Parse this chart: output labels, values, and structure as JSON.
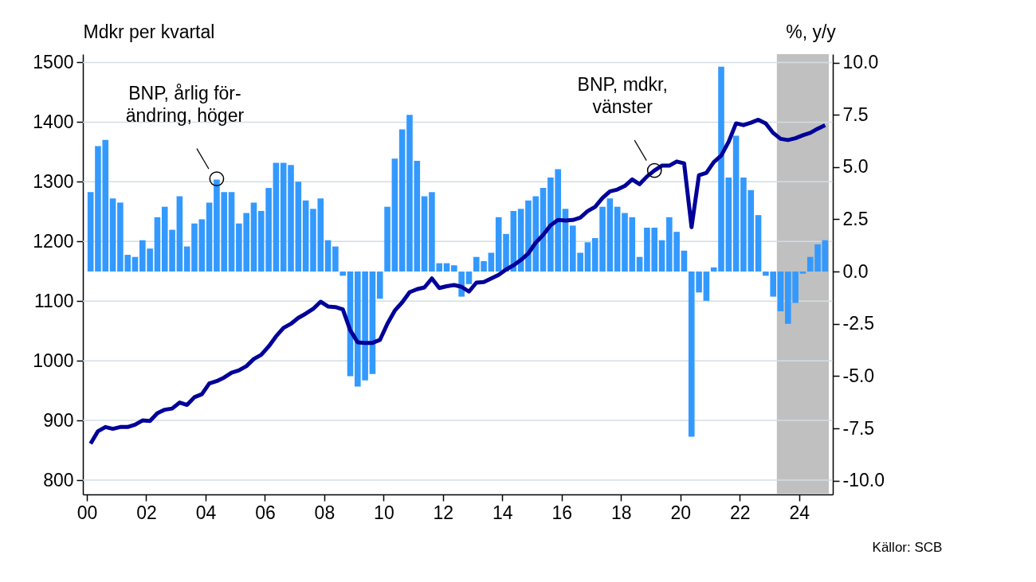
{
  "chart_data": {
    "type": "bar",
    "ylabel": "Mdkr per kvartal",
    "y2label": "%, y/y",
    "x": [
      2000.125,
      2000.375,
      2000.625,
      2000.875,
      2001.125,
      2001.375,
      2001.625,
      2001.875,
      2002.125,
      2002.375,
      2002.625,
      2002.875,
      2003.125,
      2003.375,
      2003.625,
      2003.875,
      2004.125,
      2004.375,
      2004.625,
      2004.875,
      2005.125,
      2005.375,
      2005.625,
      2005.875,
      2006.125,
      2006.375,
      2006.625,
      2006.875,
      2007.125,
      2007.375,
      2007.625,
      2007.875,
      2008.125,
      2008.375,
      2008.625,
      2008.875,
      2009.125,
      2009.375,
      2009.625,
      2009.875,
      2010.125,
      2010.375,
      2010.625,
      2010.875,
      2011.125,
      2011.375,
      2011.625,
      2011.875,
      2012.125,
      2012.375,
      2012.625,
      2012.875,
      2013.125,
      2013.375,
      2013.625,
      2013.875,
      2014.125,
      2014.375,
      2014.625,
      2014.875,
      2015.125,
      2015.375,
      2015.625,
      2015.875,
      2016.125,
      2016.375,
      2016.625,
      2016.875,
      2017.125,
      2017.375,
      2017.625,
      2017.875,
      2018.125,
      2018.375,
      2018.625,
      2018.875,
      2019.125,
      2019.375,
      2019.625,
      2019.875,
      2020.125,
      2020.375,
      2020.625,
      2020.875,
      2021.125,
      2021.375,
      2021.625,
      2021.875,
      2022.125,
      2022.375,
      2022.625,
      2022.875,
      2023.125,
      2023.375,
      2023.625,
      2023.875,
      2024.125,
      2024.375,
      2024.625,
      2024.875
    ],
    "series": [
      {
        "axis": "y2",
        "color": "#3399ff",
        "values": [
          3.8,
          6.0,
          6.3,
          3.5,
          3.3,
          0.8,
          0.7,
          1.5,
          1.1,
          2.6,
          3.1,
          2.0,
          3.6,
          1.2,
          2.3,
          2.5,
          3.3,
          4.4,
          3.8,
          3.8,
          2.3,
          2.8,
          3.3,
          2.9,
          4.0,
          5.2,
          5.2,
          5.1,
          4.3,
          3.4,
          3.0,
          3.5,
          1.5,
          1.2,
          -0.2,
          -5.0,
          -5.5,
          -5.2,
          -4.9,
          -1.3,
          3.1,
          5.4,
          6.8,
          7.5,
          5.3,
          3.6,
          3.8,
          0.4,
          0.4,
          0.3,
          -1.2,
          -0.6,
          0.7,
          0.5,
          0.9,
          2.6,
          1.8,
          2.9,
          3.0,
          3.4,
          3.6,
          4.0,
          4.5,
          4.9,
          3.0,
          2.2,
          0.9,
          1.4,
          1.6,
          3.1,
          3.5,
          3.1,
          2.8,
          2.6,
          0.7,
          2.1,
          2.1,
          1.5,
          2.6,
          1.9,
          1.0,
          -7.9,
          -1.0,
          -1.4,
          0.2,
          9.8,
          4.5,
          6.5,
          4.5,
          3.9,
          2.7,
          -0.2,
          -1.2,
          -1.9,
          -2.5,
          -1.5,
          -0.1,
          0.7,
          1.3,
          1.5
        ]
      },
      {
        "type": "line",
        "color": "#000099",
        "values": [
          861,
          882,
          889,
          886,
          889,
          889,
          893,
          900,
          899,
          912,
          918,
          920,
          930,
          926,
          939,
          944,
          962,
          966,
          972,
          980,
          984,
          991,
          1003,
          1010,
          1024,
          1041,
          1055,
          1062,
          1072,
          1079,
          1087,
          1099,
          1091,
          1090,
          1086,
          1051,
          1031,
          1030,
          1030,
          1035,
          1062,
          1084,
          1098,
          1115,
          1120,
          1123,
          1138,
          1122,
          1125,
          1127,
          1124,
          1116,
          1131,
          1132,
          1138,
          1144,
          1153,
          1160,
          1169,
          1180,
          1198,
          1211,
          1227,
          1236,
          1235,
          1236,
          1240,
          1251,
          1258,
          1273,
          1284,
          1287,
          1293,
          1304,
          1296,
          1309,
          1319,
          1327,
          1327,
          1334,
          1331,
          1224,
          1311,
          1315,
          1333,
          1344,
          1367,
          1398,
          1395,
          1399,
          1404,
          1398,
          1382,
          1372,
          1370,
          1373,
          1378,
          1382,
          1389,
          1395
        ]
      }
    ],
    "xlim": [
      2000,
      2025
    ],
    "xticks": [
      {
        "value": 2000,
        "label": "00"
      },
      {
        "value": 2002,
        "label": "02"
      },
      {
        "value": 2004,
        "label": "04"
      },
      {
        "value": 2006,
        "label": "06"
      },
      {
        "value": 2008,
        "label": "08"
      },
      {
        "value": 2010,
        "label": "10"
      },
      {
        "value": 2012,
        "label": "12"
      },
      {
        "value": 2014,
        "label": "14"
      },
      {
        "value": 2016,
        "label": "16"
      },
      {
        "value": 2018,
        "label": "18"
      },
      {
        "value": 2020,
        "label": "20"
      },
      {
        "value": 2022,
        "label": "22"
      },
      {
        "value": 2024,
        "label": "24"
      }
    ],
    "ylim": [
      776,
      1514
    ],
    "yticks": [
      800,
      900,
      1000,
      1100,
      1200,
      1300,
      1400,
      1500
    ],
    "y2lim": [
      -10.66,
      10.4
    ],
    "y2ticks": [
      {
        "value": -10,
        "label": "-10.0"
      },
      {
        "value": -7.5,
        "label": "-7.5"
      },
      {
        "value": -5,
        "label": "-5.0"
      },
      {
        "value": -2.5,
        "label": "-2.5"
      },
      {
        "value": 0,
        "label": "0.0"
      },
      {
        "value": 2.5,
        "label": "2.5"
      },
      {
        "value": 5,
        "label": "5.0"
      },
      {
        "value": 7.5,
        "label": "7.5"
      },
      {
        "value": 10,
        "label": "10.0"
      }
    ],
    "bands": [
      {
        "axis": "x",
        "from": 2023.25,
        "to": 2025,
        "color": "#c0c0c0"
      }
    ],
    "grid": "y",
    "annotations": [
      {
        "text": "BNP, årlig för-\nändring, höger",
        "x": 2004.375,
        "y": 1305
      },
      {
        "text": "BNP, mdkr,\nvänster",
        "x": 2019.125,
        "y": 1319
      },
      "Källor: SCB"
    ]
  }
}
